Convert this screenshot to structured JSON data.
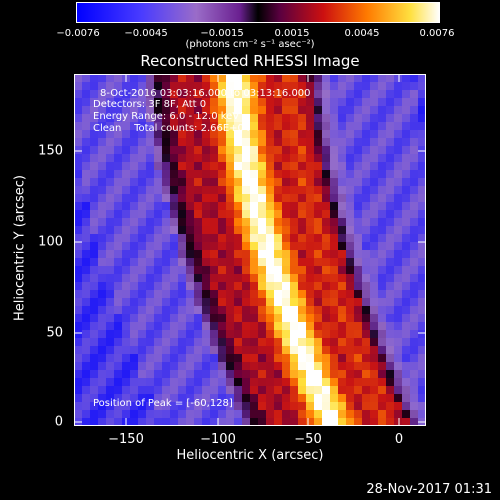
{
  "colorbar": {
    "ticks": [
      "−0.0076",
      "−0.0045",
      "−0.0015",
      "0.0015",
      "0.0045",
      "0.0076"
    ],
    "units": "(photons cm⁻² s⁻¹ asec⁻²)"
  },
  "title": "Reconstructed RHESSI Image",
  "annotations": {
    "time": "8-Oct-2016 03:03:16.000 to 03:13:16.000",
    "detectors": "Detectors: 3F 8F, Att 0",
    "energy": "Energy Range: 6.0 - 12.0 keV",
    "clean": "Clean    Total counts: 2.66E+04",
    "peak": "Position of Peak = [-60,128]"
  },
  "axes": {
    "xlabel": "Heliocentric X (arcsec)",
    "ylabel": "Heliocentric Y (arcsec)",
    "xticks": [
      "−150",
      "−100",
      "−50",
      "0"
    ],
    "yticks": [
      "0",
      "50",
      "100",
      "150"
    ]
  },
  "footer": "28-Nov-2017 01:31"
}
